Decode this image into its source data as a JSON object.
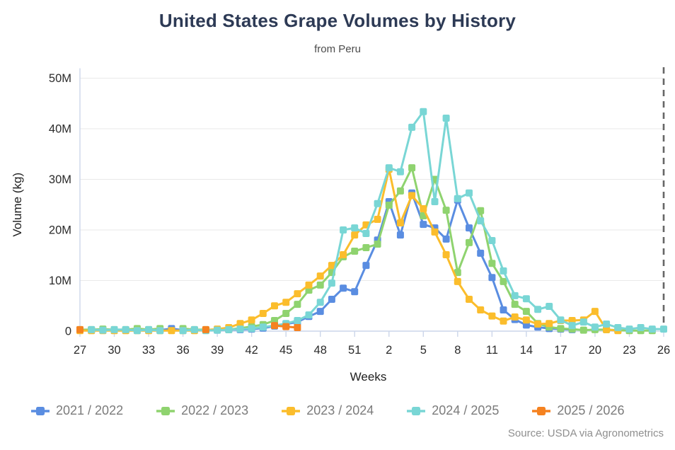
{
  "title": "United States Grape Volumes by History",
  "subtitle": "from Peru",
  "source": "Source: USDA via Agronometrics",
  "chart_data": {
    "type": "line",
    "title": "United States Grape Volumes by History",
    "subtitle": "from Peru",
    "xlabel": "Weeks",
    "ylabel": "Volume (kg)",
    "values_unit": "million kg",
    "ylim_million": [
      0,
      50
    ],
    "y_tick_labels": [
      "0",
      "10M",
      "20M",
      "30M",
      "40M",
      "50M"
    ],
    "y_tick_values_million": [
      0,
      10,
      20,
      30,
      40,
      50
    ],
    "x_tick_labels": [
      "27",
      "30",
      "33",
      "36",
      "39",
      "42",
      "45",
      "48",
      "51",
      "2",
      "5",
      "8",
      "11",
      "14",
      "17",
      "20",
      "23",
      "26"
    ],
    "grid": "horizontal",
    "legend_position": "bottom",
    "dashed_reference_week": "26",
    "categories": [
      "27",
      "28",
      "29",
      "30",
      "31",
      "32",
      "33",
      "34",
      "35",
      "36",
      "37",
      "38",
      "39",
      "40",
      "41",
      "42",
      "43",
      "44",
      "45",
      "46",
      "47",
      "48",
      "49",
      "50",
      "51",
      "52",
      "1",
      "2",
      "3",
      "4",
      "5",
      "6",
      "7",
      "8",
      "9",
      "10",
      "11",
      "12",
      "13",
      "14",
      "15",
      "16",
      "17",
      "18",
      "19",
      "20",
      "21",
      "22",
      "23",
      "24",
      "25",
      "26"
    ],
    "series": [
      {
        "name": "2021 / 2022",
        "color": "#5a8de1",
        "values": [
          0.2,
          0.2,
          0.2,
          0.2,
          0.2,
          0.2,
          0.2,
          0.2,
          0.5,
          0.2,
          0.2,
          0.2,
          0.2,
          0.3,
          0.3,
          0.4,
          0.6,
          1.0,
          1.4,
          1.8,
          2.9,
          3.9,
          6.3,
          8.5,
          7.8,
          13.0,
          18.0,
          25.6,
          19.0,
          27.3,
          21.1,
          20.4,
          18.2,
          25.9,
          20.4,
          15.4,
          10.6,
          4.2,
          2.3,
          1.2,
          0.8,
          0.5,
          0.4,
          0.3,
          null,
          null,
          null,
          null,
          null,
          null,
          null,
          null
        ]
      },
      {
        "name": "2022 / 2023",
        "color": "#8fd36f",
        "values": [
          0.3,
          0.3,
          0.4,
          0.3,
          0.3,
          0.5,
          0.3,
          0.5,
          null,
          0.5,
          0.3,
          0.3,
          0.3,
          0.3,
          0.6,
          0.9,
          1.3,
          2.1,
          3.5,
          5.3,
          8.1,
          9.1,
          11.6,
          14.7,
          15.8,
          16.5,
          17.2,
          24.9,
          27.7,
          32.3,
          22.8,
          30.0,
          23.9,
          11.6,
          17.5,
          23.8,
          13.4,
          9.8,
          5.3,
          3.9,
          1.5,
          0.8,
          0.5,
          0.4,
          0.2,
          0.3,
          0.3,
          0.2,
          0.1,
          0.1,
          0.1,
          null
        ]
      },
      {
        "name": "2023 / 2024",
        "color": "#fbbd2c",
        "values": [
          0.1,
          0.1,
          0.1,
          0.1,
          0.1,
          0.1,
          0.1,
          0.1,
          0.1,
          0.1,
          0.1,
          0.2,
          0.4,
          0.7,
          1.5,
          2.2,
          3.5,
          5.0,
          5.7,
          7.4,
          9.1,
          10.9,
          13.0,
          15.1,
          19.0,
          21.0,
          22.1,
          32.0,
          21.4,
          26.8,
          24.2,
          19.6,
          15.1,
          9.8,
          6.3,
          4.2,
          3.0,
          2.0,
          2.8,
          2.2,
          1.4,
          1.5,
          2.1,
          2.1,
          2.2,
          3.9,
          0.3,
          0.1,
          null,
          null,
          null,
          null
        ]
      },
      {
        "name": "2024 / 2025",
        "color": "#79d6d5",
        "values": [
          null,
          0.3,
          0.2,
          0.3,
          0.3,
          0.1,
          0.3,
          0.1,
          null,
          0.1,
          0.3,
          0.1,
          0.2,
          0.3,
          0.4,
          0.5,
          0.8,
          1.1,
          1.5,
          2.1,
          3.2,
          5.7,
          9.5,
          20.0,
          20.4,
          19.3,
          25.2,
          32.3,
          31.5,
          40.3,
          43.4,
          25.6,
          42.1,
          26.2,
          27.3,
          21.8,
          17.9,
          11.9,
          7.0,
          6.4,
          4.3,
          4.9,
          2.2,
          1.1,
          1.8,
          0.8,
          1.4,
          0.7,
          0.4,
          0.7,
          0.4,
          0.4
        ]
      },
      {
        "name": "2025 / 2026",
        "color": "#f58220",
        "values": [
          0.3,
          null,
          null,
          null,
          null,
          null,
          null,
          null,
          null,
          null,
          null,
          0.3,
          null,
          null,
          null,
          null,
          null,
          1.1,
          0.9,
          0.7,
          null,
          null,
          null,
          null,
          null,
          null,
          null,
          null,
          null,
          null,
          null,
          null,
          null,
          null,
          null,
          null,
          null,
          null,
          null,
          null,
          null,
          null,
          null,
          null,
          null,
          null,
          null,
          null,
          null,
          null,
          null,
          null
        ]
      }
    ],
    "style": {
      "grid_color": "#e9e9e9",
      "axis_color": "#ccd6ea",
      "tick_text_color": "#2b2b2b",
      "dashed_line_color": "#666666",
      "title_color": "#2d3a55",
      "legend_text_color": "#7b7b7b",
      "source_text_color": "#8f8f8f"
    }
  }
}
